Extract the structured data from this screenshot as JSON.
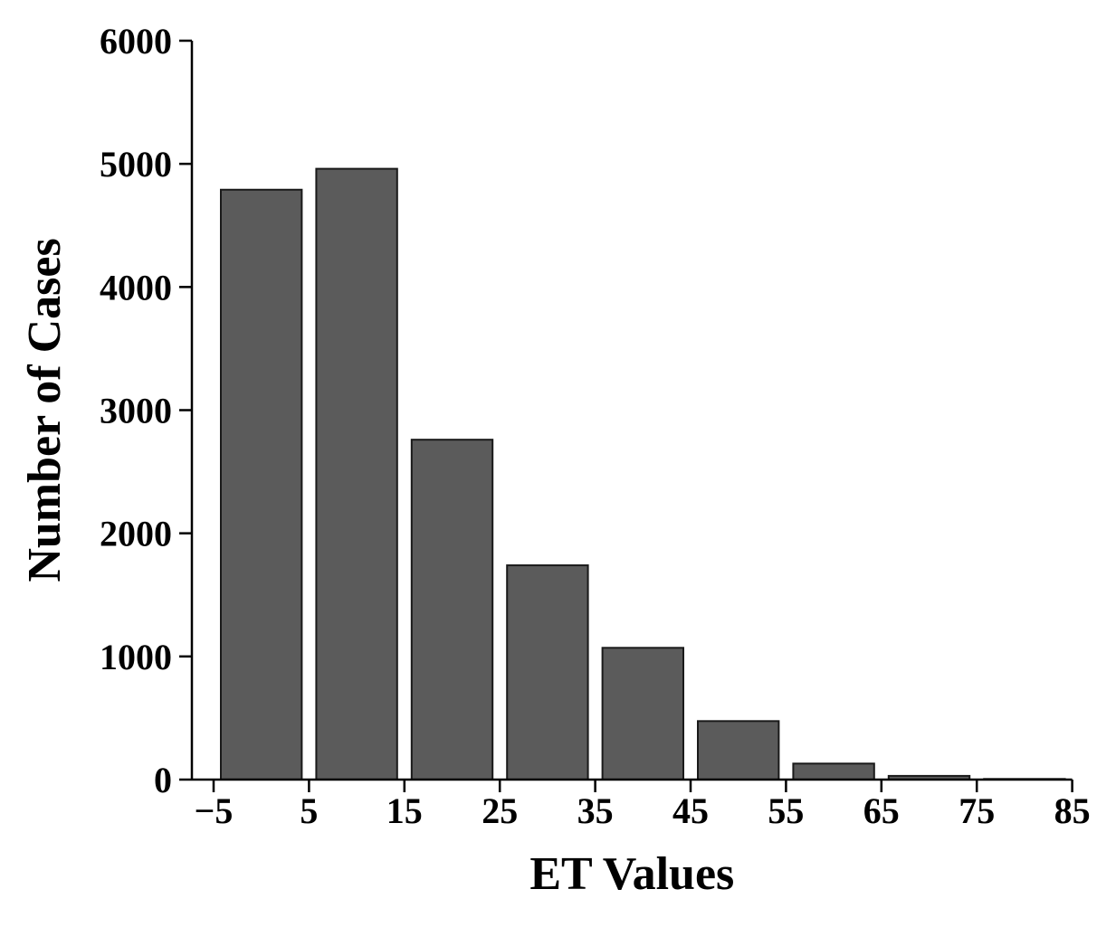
{
  "chart_data": {
    "type": "bar",
    "xlabel": "ET Values",
    "ylabel": "Number of Cases",
    "xlim": [
      -6,
      85
    ],
    "ylim": [
      0,
      6000
    ],
    "x_ticks": [
      -5,
      5,
      15,
      25,
      35,
      45,
      55,
      65,
      75,
      85
    ],
    "x_tick_labels": [
      "−5",
      "5",
      "15",
      "25",
      "35",
      "45",
      "55",
      "65",
      "75",
      "85"
    ],
    "y_ticks": [
      0,
      1000,
      2000,
      3000,
      4000,
      5000,
      6000
    ],
    "bins": [
      {
        "start": -5,
        "end": 5,
        "value": 4790
      },
      {
        "start": 5,
        "end": 15,
        "value": 4960
      },
      {
        "start": 15,
        "end": 25,
        "value": 2760
      },
      {
        "start": 25,
        "end": 35,
        "value": 1740
      },
      {
        "start": 35,
        "end": 45,
        "value": 1070
      },
      {
        "start": 45,
        "end": 55,
        "value": 475
      },
      {
        "start": 55,
        "end": 65,
        "value": 130
      },
      {
        "start": 65,
        "end": 75,
        "value": 30
      },
      {
        "start": 75,
        "end": 85,
        "value": 5
      }
    ],
    "bar_color": "#5b5b5b",
    "bar_edge_color": "#1a1a1a",
    "grid": false
  }
}
